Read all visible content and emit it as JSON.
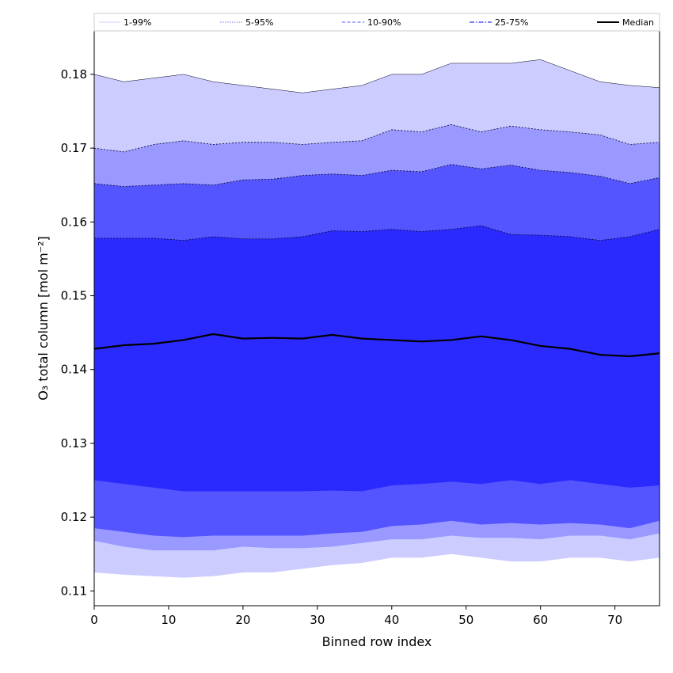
{
  "chart_data": {
    "type": "area",
    "xlabel": "Binned row index",
    "ylabel": "O₃ total column [mol m⁻²]",
    "xlim": [
      0,
      76
    ],
    "ylim": [
      0.108,
      0.186
    ],
    "xticks": [
      0,
      10,
      20,
      30,
      40,
      50,
      60,
      70
    ],
    "yticks": [
      0.11,
      0.12,
      0.13,
      0.14,
      0.15,
      0.16,
      0.17,
      0.18
    ],
    "legend_position": "top",
    "grid": false,
    "x_points": [
      0,
      4,
      8,
      12,
      16,
      20,
      24,
      28,
      32,
      36,
      40,
      44,
      48,
      52,
      56,
      60,
      64,
      68,
      72,
      76
    ],
    "bands": [
      {
        "name": "1-99%",
        "line_style": "solid-thin",
        "fill_color": "#ccccff",
        "lower": [
          0.1125,
          0.1122,
          0.112,
          0.1118,
          0.112,
          0.1125,
          0.1125,
          0.113,
          0.1135,
          0.1138,
          0.1145,
          0.1145,
          0.115,
          0.1145,
          0.114,
          0.114,
          0.1145,
          0.1145,
          0.114,
          0.1145
        ],
        "upper": [
          0.18,
          0.179,
          0.1795,
          0.18,
          0.179,
          0.1785,
          0.178,
          0.1775,
          0.178,
          0.1785,
          0.18,
          0.18,
          0.1815,
          0.1815,
          0.1815,
          0.182,
          0.1805,
          0.179,
          0.1785,
          0.1782
        ]
      },
      {
        "name": "5-95%",
        "line_style": "dotted",
        "fill_color": "#9999ff",
        "lower": [
          0.1168,
          0.116,
          0.1155,
          0.1155,
          0.1155,
          0.116,
          0.1158,
          0.1158,
          0.116,
          0.1165,
          0.117,
          0.117,
          0.1175,
          0.1172,
          0.1172,
          0.117,
          0.1175,
          0.1175,
          0.117,
          0.1178
        ],
        "upper": [
          0.17,
          0.1695,
          0.1705,
          0.171,
          0.1705,
          0.1708,
          0.1708,
          0.1705,
          0.1708,
          0.171,
          0.1725,
          0.1722,
          0.1732,
          0.1722,
          0.173,
          0.1725,
          0.1722,
          0.1718,
          0.1705,
          0.1708
        ]
      },
      {
        "name": "10-90%",
        "line_style": "dashed",
        "fill_color": "#5555ff",
        "lower": [
          0.1185,
          0.118,
          0.1175,
          0.1173,
          0.1175,
          0.1175,
          0.1175,
          0.1175,
          0.1178,
          0.118,
          0.1188,
          0.119,
          0.1195,
          0.119,
          0.1192,
          0.119,
          0.1192,
          0.119,
          0.1185,
          0.1195
        ],
        "upper": [
          0.1652,
          0.1648,
          0.165,
          0.1652,
          0.165,
          0.1657,
          0.1658,
          0.1663,
          0.1665,
          0.1663,
          0.167,
          0.1668,
          0.1678,
          0.1672,
          0.1677,
          0.167,
          0.1667,
          0.1662,
          0.1652,
          0.166
        ]
      },
      {
        "name": "25-75%",
        "line_style": "dash-dot",
        "fill_color": "#2a2aff",
        "lower": [
          0.125,
          0.1245,
          0.124,
          0.1235,
          0.1235,
          0.1235,
          0.1235,
          0.1235,
          0.1236,
          0.1235,
          0.1243,
          0.1245,
          0.1248,
          0.1245,
          0.125,
          0.1245,
          0.125,
          0.1245,
          0.124,
          0.1243
        ],
        "upper": [
          0.1578,
          0.1578,
          0.1578,
          0.1575,
          0.158,
          0.1577,
          0.1577,
          0.158,
          0.1588,
          0.1587,
          0.159,
          0.1587,
          0.159,
          0.1595,
          0.1583,
          0.1582,
          0.158,
          0.1575,
          0.158,
          0.159
        ]
      }
    ],
    "median": {
      "name": "Median",
      "color": "#000000",
      "values": [
        0.1428,
        0.1433,
        0.1435,
        0.144,
        0.1448,
        0.1442,
        0.1443,
        0.1442,
        0.1447,
        0.1442,
        0.144,
        0.1438,
        0.144,
        0.1445,
        0.144,
        0.1432,
        0.1428,
        0.142,
        0.1418,
        0.1422
      ]
    }
  }
}
